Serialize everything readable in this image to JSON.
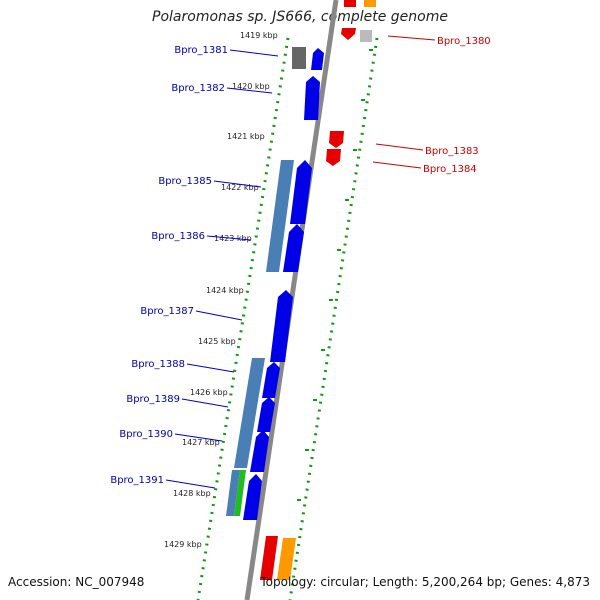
{
  "title": "Polaromonas sp. JS666, complete genome",
  "accession": "Accession: NC_007948",
  "summary": "Topology: circular; Length: 5,200,264 bp; Genes: 4,873",
  "kbp_labels": [
    "1419 kbp",
    "1420 kbp",
    "1421 kbp",
    "1422 kbp",
    "1423 kbp",
    "1424 kbp",
    "1425 kbp",
    "1426 kbp",
    "1427 kbp",
    "1428 kbp",
    "1429 kbp"
  ],
  "genes_left": [
    "Bpro_1381",
    "Bpro_1382",
    "Bpro_1385",
    "Bpro_1386",
    "Bpro_1387",
    "Bpro_1388",
    "Bpro_1389",
    "Bpro_1390",
    "Bpro_1391"
  ],
  "genes_right": [
    "Bpro_1380",
    "Bpro_1383",
    "Bpro_1384"
  ],
  "colors": {
    "forward_cds": "#0000e6",
    "reverse_cds": "#e60000",
    "steelblue_feature": "#4a7fb5",
    "green_feature": "#22bb22",
    "orange_feature": "#ff9900",
    "gray_feature": "#777777",
    "track_dots": "#119911",
    "backbone": "#888888",
    "left_label": "#0000aa",
    "right_label": "#cc0000"
  }
}
